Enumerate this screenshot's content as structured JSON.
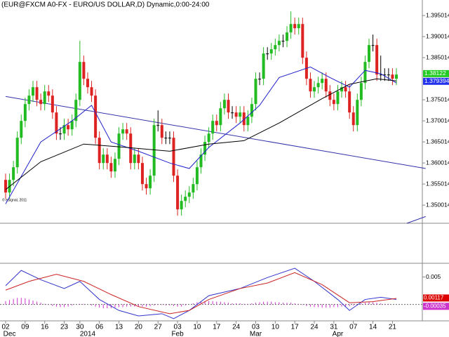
{
  "chart_data": {
    "type": "candlestick",
    "title": "(EUR@FXCM A0-FX - EURO/US DOLLAR,D) Dynamic,0:00-24:00",
    "watermark": "© eSignal, 2011",
    "ylim": [
      1.3457,
      1.3987
    ],
    "yticks": [
      1.350014,
      1.355014,
      1.360014,
      1.365014,
      1.370014,
      1.375014,
      1.385014,
      1.390014,
      1.395014
    ],
    "up_color": "#22bb22",
    "down_color": "#dd2222",
    "candles": {
      "open": [
        1.356,
        1.353,
        1.356,
        1.359,
        1.366,
        1.37,
        1.374,
        1.376,
        1.378,
        1.375,
        1.374,
        1.377,
        1.376,
        1.372,
        1.367,
        1.367,
        1.369,
        1.368,
        1.37,
        1.375,
        1.384,
        1.38,
        1.378,
        1.376,
        1.366,
        1.36,
        1.362,
        1.36,
        1.358,
        1.361,
        1.367,
        1.368,
        1.367,
        1.36,
        1.362,
        1.36,
        1.355,
        1.354,
        1.357,
        1.369,
        1.369,
        1.366,
        1.366,
        1.366,
        1.357,
        1.349,
        1.351,
        1.352,
        1.353,
        1.355,
        1.359,
        1.362,
        1.365,
        1.367,
        1.37,
        1.369,
        1.373,
        1.375,
        1.372,
        1.372,
        1.371,
        1.372,
        1.369,
        1.371,
        1.374,
        1.38,
        1.38,
        1.386,
        1.386,
        1.387,
        1.388,
        1.389,
        1.389,
        1.391,
        1.393,
        1.392,
        1.393,
        1.385,
        1.38,
        1.377,
        1.378,
        1.379,
        1.38,
        1.377,
        1.375,
        1.374,
        1.377,
        1.378,
        1.377,
        1.372,
        1.369,
        1.375,
        1.379,
        1.384,
        1.388,
        1.388,
        1.381,
        1.381,
        1.381,
        1.381,
        1.38
      ],
      "high": [
        1.3575,
        1.3575,
        1.3605,
        1.3675,
        1.3715,
        1.3755,
        1.3775,
        1.3795,
        1.3795,
        1.3765,
        1.3785,
        1.3785,
        1.3775,
        1.3735,
        1.3685,
        1.3705,
        1.3705,
        1.3715,
        1.3765,
        1.389,
        1.3855,
        1.3815,
        1.3795,
        1.3775,
        1.3675,
        1.3635,
        1.3635,
        1.3615,
        1.3625,
        1.3685,
        1.3695,
        1.3695,
        1.3685,
        1.3635,
        1.3635,
        1.3615,
        1.3565,
        1.3585,
        1.3705,
        1.3725,
        1.3705,
        1.3675,
        1.3675,
        1.3675,
        1.3585,
        1.3525,
        1.3535,
        1.3545,
        1.3565,
        1.3605,
        1.3635,
        1.3665,
        1.3685,
        1.3715,
        1.3715,
        1.3745,
        1.3765,
        1.3765,
        1.3735,
        1.3735,
        1.3735,
        1.3735,
        1.3725,
        1.3755,
        1.3815,
        1.3815,
        1.3875,
        1.3875,
        1.3885,
        1.3895,
        1.3905,
        1.3905,
        1.3925,
        1.396,
        1.3945,
        1.3945,
        1.3945,
        1.3865,
        1.3815,
        1.3795,
        1.3805,
        1.3815,
        1.3815,
        1.3785,
        1.3765,
        1.3785,
        1.3795,
        1.3795,
        1.3785,
        1.3735,
        1.3765,
        1.3805,
        1.3855,
        1.3895,
        1.3905,
        1.3895,
        1.3855,
        1.3825,
        1.3825,
        1.3825,
        1.3825
      ],
      "low": [
        1.3515,
        1.3515,
        1.3545,
        1.3575,
        1.3645,
        1.3685,
        1.3725,
        1.3745,
        1.3735,
        1.3725,
        1.3725,
        1.3745,
        1.3705,
        1.3655,
        1.3655,
        1.3655,
        1.3665,
        1.3665,
        1.3685,
        1.3735,
        1.3785,
        1.3765,
        1.3745,
        1.3645,
        1.3585,
        1.3585,
        1.3585,
        1.3565,
        1.3565,
        1.3595,
        1.3655,
        1.3655,
        1.3585,
        1.3585,
        1.3585,
        1.3535,
        1.3525,
        1.3525,
        1.3555,
        1.3675,
        1.3645,
        1.3645,
        1.3645,
        1.3555,
        1.3475,
        1.3475,
        1.3495,
        1.3505,
        1.3515,
        1.3535,
        1.3575,
        1.3605,
        1.3635,
        1.3655,
        1.3675,
        1.3675,
        1.3715,
        1.3705,
        1.3705,
        1.3695,
        1.3695,
        1.3675,
        1.3675,
        1.3695,
        1.3725,
        1.3785,
        1.3785,
        1.3845,
        1.3845,
        1.3855,
        1.3865,
        1.3875,
        1.3875,
        1.3895,
        1.3905,
        1.3905,
        1.3835,
        1.3785,
        1.3755,
        1.3755,
        1.3765,
        1.3775,
        1.3755,
        1.3735,
        1.3725,
        1.3725,
        1.3755,
        1.3755,
        1.3705,
        1.3675,
        1.3675,
        1.3735,
        1.3775,
        1.3825,
        1.3865,
        1.3795,
        1.3795,
        1.3795,
        1.3795,
        1.3785,
        1.3785
      ],
      "close": [
        1.353,
        1.356,
        1.359,
        1.366,
        1.37,
        1.374,
        1.376,
        1.378,
        1.375,
        1.374,
        1.377,
        1.376,
        1.372,
        1.367,
        1.367,
        1.369,
        1.368,
        1.37,
        1.375,
        1.384,
        1.38,
        1.378,
        1.376,
        1.366,
        1.36,
        1.362,
        1.36,
        1.358,
        1.361,
        1.367,
        1.368,
        1.367,
        1.36,
        1.362,
        1.36,
        1.355,
        1.354,
        1.357,
        1.369,
        1.369,
        1.366,
        1.366,
        1.366,
        1.357,
        1.349,
        1.351,
        1.352,
        1.353,
        1.355,
        1.359,
        1.362,
        1.365,
        1.367,
        1.37,
        1.369,
        1.373,
        1.375,
        1.372,
        1.372,
        1.371,
        1.372,
        1.369,
        1.371,
        1.374,
        1.38,
        1.38,
        1.386,
        1.386,
        1.387,
        1.388,
        1.389,
        1.389,
        1.391,
        1.393,
        1.392,
        1.393,
        1.385,
        1.38,
        1.377,
        1.378,
        1.379,
        1.38,
        1.377,
        1.375,
        1.374,
        1.377,
        1.378,
        1.377,
        1.372,
        1.369,
        1.375,
        1.379,
        1.384,
        1.388,
        1.388,
        1.381,
        1.381,
        1.381,
        1.381,
        1.38,
        1.381
      ]
    },
    "lines": [
      {
        "color": "#2222cc",
        "x": [
          0,
          9,
          17,
          22,
          27,
          34,
          42,
          47,
          52,
          60,
          65,
          70,
          78,
          83,
          88,
          92,
          96,
          100
        ],
        "values": [
          1.3503,
          1.365,
          1.37,
          1.3737,
          1.365,
          1.3628,
          1.36,
          1.3587,
          1.3637,
          1.3695,
          1.3737,
          1.3803,
          1.3828,
          1.3803,
          1.378,
          1.382,
          1.3812,
          1.379
        ]
      },
      {
        "color": "#000000",
        "x": [
          0,
          9,
          20,
          31,
          42,
          52,
          61,
          70,
          81,
          88,
          95,
          100
        ],
        "values": [
          1.3537,
          1.3603,
          1.3645,
          1.3637,
          1.3628,
          1.3645,
          1.3653,
          1.3695,
          1.3753,
          1.3787,
          1.38,
          1.3795
        ]
      }
    ],
    "trendlines": [
      {
        "color": "#3333aa",
        "x": [
          0,
          107.5
        ],
        "values": [
          1.3758,
          1.3587
        ]
      },
      {
        "color": "#3333aa",
        "x": [
          102.7,
          107.5
        ],
        "values": [
          1.3457,
          1.3473
        ]
      }
    ],
    "price_markers": [
      {
        "value": 1.38122,
        "color": "#22cc22"
      },
      {
        "value": 1.379394,
        "color": "#2233ee"
      }
    ],
    "xticks": [
      {
        "value": 0,
        "label": "02"
      },
      {
        "value": 5,
        "label": "09"
      },
      {
        "value": 10,
        "label": "16"
      },
      {
        "value": 15,
        "label": "23"
      },
      {
        "value": 19,
        "label": "30"
      },
      {
        "value": 24,
        "label": "06"
      },
      {
        "value": 29,
        "label": "13"
      },
      {
        "value": 34,
        "label": "20"
      },
      {
        "value": 39,
        "label": "27"
      },
      {
        "value": 44,
        "label": "03"
      },
      {
        "value": 49,
        "label": "10"
      },
      {
        "value": 54,
        "label": "17"
      },
      {
        "value": 59,
        "label": "24"
      },
      {
        "value": 64,
        "label": "03"
      },
      {
        "value": 69,
        "label": "10"
      },
      {
        "value": 74,
        "label": "17"
      },
      {
        "value": 79,
        "label": "24"
      },
      {
        "value": 84,
        "label": "31"
      },
      {
        "value": 89,
        "label": "07"
      },
      {
        "value": 94,
        "label": "14"
      },
      {
        "value": 99,
        "label": "21"
      }
    ],
    "xticks2": [
      {
        "value": 1,
        "label": "Dec"
      },
      {
        "value": 21,
        "label": "2014"
      },
      {
        "value": 44,
        "label": "Feb"
      },
      {
        "value": 64,
        "label": "Mar"
      },
      {
        "value": 85,
        "label": "Apr"
      }
    ],
    "macd": {
      "ylim": [
        -0.003,
        0.0075
      ],
      "yticks": [
        0.005
      ],
      "series": [
        {
          "color": "#3333cc",
          "x": [
            0,
            4,
            9,
            15,
            19,
            24,
            29,
            34,
            40,
            43,
            47,
            52,
            60,
            67,
            74,
            79,
            85,
            88,
            92,
            96,
            100
          ],
          "values": [
            0.0034,
            0.0062,
            0.0045,
            0.0029,
            0.0042,
            0.0009,
            -0.0011,
            -0.0021,
            -0.0017,
            -0.0026,
            -0.0011,
            0.0016,
            0.0029,
            0.0049,
            0.0066,
            0.0042,
            0.0009,
            -0.0011,
            0.0009,
            0.0013,
            0.0009
          ]
        },
        {
          "color": "#cc2222",
          "x": [
            0,
            6,
            13,
            20,
            27,
            34,
            42,
            47,
            52,
            60,
            67,
            74,
            81,
            88,
            94,
            100
          ],
          "values": [
            0.0026,
            0.0042,
            0.0055,
            0.0042,
            0.0018,
            -0.0004,
            -0.0017,
            -0.0011,
            0.0009,
            0.0029,
            0.0039,
            0.0058,
            0.0036,
            0.0003,
            0.0005,
            0.0011
          ]
        }
      ],
      "histogram": {
        "color": "#cc33cc",
        "values": [
          0.0006,
          0.0008,
          0.001,
          0.0012,
          0.0012,
          0.0011,
          0.0009,
          0.0007,
          0.0005,
          0.0003,
          0.0001,
          -0.0001,
          -0.0003,
          -0.0004,
          -0.0005,
          -0.0005,
          -0.0004,
          -0.0002,
          0,
          0.0001,
          0.0001,
          0,
          -0.0002,
          -0.0004,
          -0.0006,
          -0.0007,
          -0.0007,
          -0.0007,
          -0.0006,
          -0.0005,
          -0.0005,
          -0.0004,
          -0.0004,
          -0.0004,
          -0.0004,
          -0.0004,
          -0.0004,
          -0.0003,
          -0.0002,
          -0.0001,
          -0.0001,
          -0.0002,
          -0.0002,
          -0.0003,
          -0.0004,
          -0.0004,
          -0.0002,
          0,
          0.0002,
          0.0004,
          0.0005,
          0.0006,
          0.0006,
          0.0006,
          0.0005,
          0.0005,
          0.0004,
          0.0003,
          0.0002,
          0.0002,
          0.0002,
          0.0001,
          0.0001,
          0.0002,
          0.0003,
          0.0004,
          0.0005,
          0.0005,
          0.0005,
          0.0004,
          0.0004,
          0.0003,
          0.0003,
          0.0003,
          0.0002,
          0.0001,
          -0.0001,
          -0.0003,
          -0.0004,
          -0.0005,
          -0.0005,
          -0.0006,
          -0.0006,
          -0.0006,
          -0.0005,
          -0.0005,
          -0.0004,
          -0.0004,
          -0.0003,
          -0.0002,
          0,
          0.0002,
          0.0003,
          0.0004,
          0.0004,
          0.0003,
          0.0002,
          0.0001,
          0.0001,
          0,
          0
        ]
      },
      "markers": [
        {
          "value": 0.00117,
          "color": "#dd0000"
        },
        {
          "value": -0.00035,
          "color": "#cc33cc"
        }
      ]
    }
  }
}
